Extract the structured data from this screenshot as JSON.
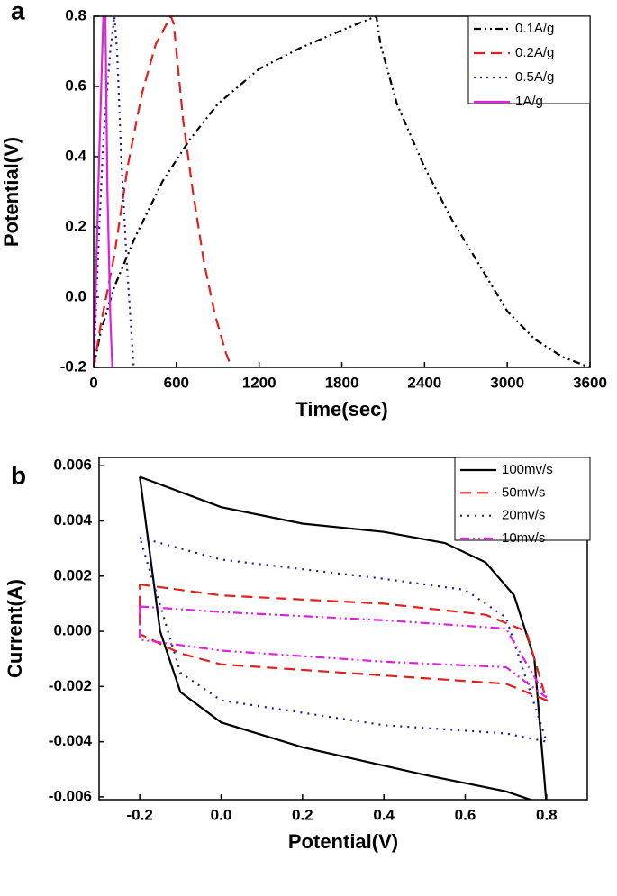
{
  "chart_data": [
    {
      "type": "line",
      "panel": "a",
      "xlabel": "Time(sec)",
      "ylabel": "Potential(V)",
      "xlim": [
        0,
        3600
      ],
      "ylim": [
        -0.2,
        0.8
      ],
      "xticks": [
        0,
        600,
        1200,
        1800,
        2400,
        3000,
        3600
      ],
      "yticks": [
        -0.2,
        {
          "value": 0,
          "label": "0.0"
        },
        0.2,
        0.4,
        0.6,
        0.8
      ],
      "legend": "upper right",
      "series": [
        {
          "name": "0.1A/g",
          "color": "#000000",
          "dash": "8 4 2 4 2 4",
          "x": [
            0,
            50,
            150,
            300,
            500,
            700,
            900,
            1200,
            1500,
            1800,
            2050,
            2080,
            2200,
            2400,
            2600,
            2800,
            3000,
            3200,
            3400,
            3600
          ],
          "values": [
            -0.2,
            -0.1,
            0.03,
            0.17,
            0.33,
            0.45,
            0.55,
            0.65,
            0.71,
            0.76,
            0.8,
            0.72,
            0.55,
            0.37,
            0.22,
            0.09,
            -0.04,
            -0.12,
            -0.17,
            -0.2
          ]
        },
        {
          "name": "0.2A/g",
          "color": "#e0201c",
          "dash": "12 7",
          "x": [
            0,
            50,
            150,
            250,
            350,
            450,
            560,
            580,
            650,
            720,
            800,
            880,
            960,
            1000
          ],
          "values": [
            -0.2,
            -0.08,
            0.12,
            0.38,
            0.58,
            0.72,
            0.8,
            0.78,
            0.5,
            0.3,
            0.1,
            -0.05,
            -0.16,
            -0.2
          ]
        },
        {
          "name": "0.5A/g",
          "color": "#1c1c9c",
          "dash": "2 5",
          "x": [
            0,
            30,
            70,
            120,
            150,
            170,
            200,
            240,
            270,
            290
          ],
          "values": [
            -0.2,
            0.1,
            0.45,
            0.7,
            0.8,
            0.7,
            0.4,
            0.1,
            -0.08,
            -0.2
          ]
        },
        {
          "name": "1A/g",
          "color": "#e020e0",
          "dash": "",
          "x": [
            0,
            40,
            70,
            85,
            100,
            120,
            135
          ],
          "values": [
            -0.2,
            0.4,
            0.8,
            0.8,
            0.3,
            -0.05,
            -0.2
          ]
        }
      ]
    },
    {
      "type": "line",
      "panel": "b",
      "xlabel": "Potential(V)",
      "ylabel": "Current(A)",
      "xlim": [
        -0.3,
        0.9
      ],
      "ylim": [
        -0.0061,
        0.0063
      ],
      "xticks": [
        -0.2,
        {
          "value": 0,
          "label": "0.0"
        },
        0.2,
        0.4,
        0.6,
        0.8
      ],
      "yticks": [
        {
          "value": -0.006,
          "label": "-0.006"
        },
        {
          "value": -0.004,
          "label": "-0.004"
        },
        {
          "value": -0.002,
          "label": "-0.002"
        },
        {
          "value": 0,
          "label": "0.000"
        },
        0.002,
        0.004,
        0.006
      ],
      "legend": "upper right",
      "series": [
        {
          "name": "100mv/s",
          "color": "#000000",
          "dash": "",
          "x": [
            -0.2,
            0,
            0.2,
            0.4,
            0.55,
            0.65,
            0.72,
            0.77,
            0.8,
            0.7,
            0.5,
            0.2,
            0,
            -0.1,
            -0.15,
            -0.2
          ],
          "values": [
            0.0056,
            0.0045,
            0.0039,
            0.0036,
            0.0032,
            0.0025,
            0.0013,
            -0.001,
            -0.0063,
            -0.0058,
            -0.0052,
            -0.0042,
            -0.0033,
            -0.0022,
            0,
            0.0056
          ]
        },
        {
          "name": "50mv/s",
          "color": "#e0201c",
          "dash": "12 7",
          "x": [
            -0.2,
            0,
            0.4,
            0.65,
            0.75,
            0.8,
            0.7,
            0.4,
            0,
            -0.1,
            -0.2,
            -0.2
          ],
          "values": [
            0.0017,
            0.0013,
            0.001,
            0.0006,
            0,
            -0.0025,
            -0.0019,
            -0.0016,
            -0.0012,
            -0.0008,
            -0.0001,
            0.0017
          ]
        },
        {
          "name": "20mv/s",
          "color": "#1c1c9c",
          "dash": "2 6",
          "x": [
            -0.2,
            0,
            0.4,
            0.6,
            0.7,
            0.8,
            0.7,
            0.4,
            0,
            -0.1,
            -0.2
          ],
          "values": [
            0.0034,
            0.0026,
            0.0019,
            0.0015,
            0.0005,
            -0.004,
            -0.0037,
            -0.0034,
            -0.0025,
            -0.0015,
            0.0034
          ]
        },
        {
          "name": "10mv/s",
          "color": "#e020e0",
          "dash": "10 4 2 4 2 4",
          "x": [
            -0.2,
            0,
            0.4,
            0.7,
            0.8,
            0.7,
            0.4,
            0,
            -0.2,
            -0.2
          ],
          "values": [
            0.0009,
            0.0007,
            0.0004,
            0.0001,
            -0.0024,
            -0.0013,
            -0.0011,
            -0.0007,
            -0.0003,
            0.0009
          ]
        }
      ]
    }
  ]
}
